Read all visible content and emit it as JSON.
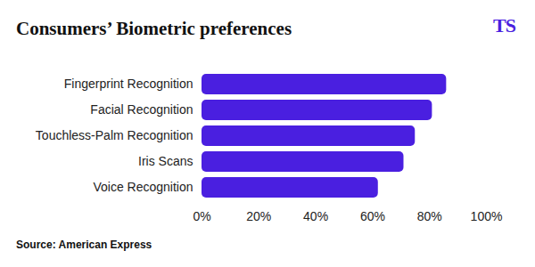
{
  "chart_data": {
    "type": "bar",
    "orientation": "horizontal",
    "title": "Consumers’ Biometric preferences",
    "logo": "TS",
    "source": "Source: American Express",
    "categories": [
      "Fingerprint Recognition",
      "Facial Recognition",
      "Touchless-Palm Recognition",
      "Iris Scans",
      "Voice Recognition"
    ],
    "values": [
      86,
      81,
      75,
      71,
      62
    ],
    "color": "#4a1fe0",
    "xlim": [
      0,
      100
    ],
    "xticks": [
      {
        "value": 0,
        "label": "0%"
      },
      {
        "value": 20,
        "label": "20%"
      },
      {
        "value": 40,
        "label": "40%"
      },
      {
        "value": 60,
        "label": "60%"
      },
      {
        "value": 80,
        "label": "80%"
      },
      {
        "value": 100,
        "label": "100%"
      }
    ],
    "grid": false
  }
}
